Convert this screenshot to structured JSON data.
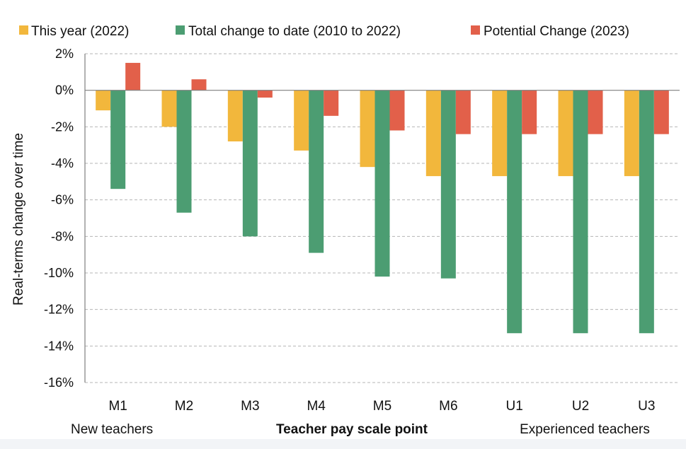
{
  "chart_data": {
    "type": "bar",
    "categories": [
      "M1",
      "M2",
      "M3",
      "M4",
      "M5",
      "M6",
      "U1",
      "U2",
      "U3"
    ],
    "series": [
      {
        "name": "This year (2022)",
        "color": "#F2B73C",
        "values": [
          -1.1,
          -2.0,
          -2.8,
          -3.3,
          -4.2,
          -4.7,
          -4.7,
          -4.7,
          -4.7
        ]
      },
      {
        "name": "Total change to date (2010 to 2022)",
        "color": "#4C9D72",
        "values": [
          -5.4,
          -6.7,
          -8.0,
          -8.9,
          -10.2,
          -10.3,
          -13.3,
          -13.3,
          -13.3
        ]
      },
      {
        "name": "Potential Change (2023)",
        "color": "#E2604A",
        "values": [
          1.5,
          0.6,
          -0.4,
          -1.4,
          -2.2,
          -2.4,
          -2.4,
          -2.4,
          -2.4
        ]
      }
    ],
    "ylim": [
      -16,
      2
    ],
    "yticks": [
      2,
      0,
      -2,
      -4,
      -6,
      -8,
      -10,
      -12,
      -14,
      -16
    ],
    "ytick_labels": [
      "2%",
      "0%",
      "-2%",
      "-4%",
      "-6%",
      "-8%",
      "-10%",
      "-12%",
      "-14%",
      "-16%"
    ],
    "ylabel": "Real-terms change over time",
    "xlabel": "Teacher pay scale point",
    "group_labels": {
      "left": "New teachers",
      "right": "Experienced teachers"
    },
    "grid": true,
    "legend_position": "top"
  }
}
